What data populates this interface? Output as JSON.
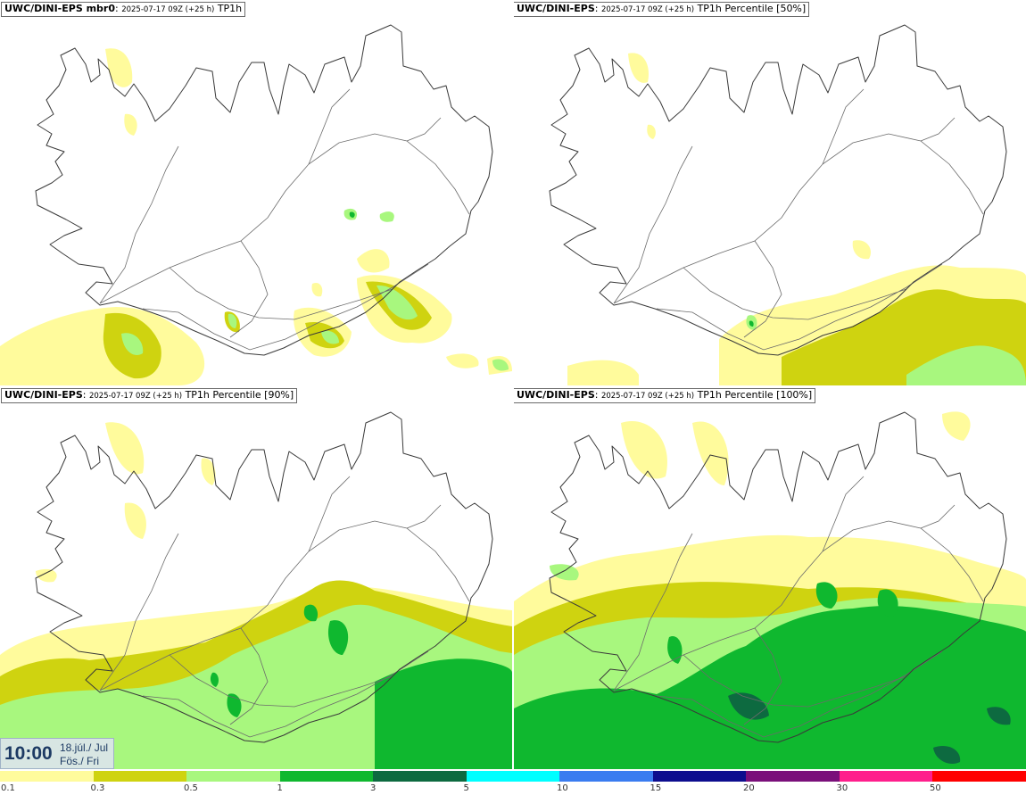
{
  "panels": [
    {
      "source": "UWC/DINI-EPS mbr0",
      "meta": "2025-07-17 09Z (+25 h)",
      "variable": "TP1h"
    },
    {
      "source": "UWC/DINI-EPS",
      "meta": "2025-07-17 09Z (+25 h)",
      "variable": "TP1h Percentile [50%]"
    },
    {
      "source": "UWC/DINI-EPS",
      "meta": "2025-07-17 09Z (+25 h)",
      "variable": "TP1h Percentile [90%]"
    },
    {
      "source": "UWC/DINI-EPS",
      "meta": "2025-07-17 09Z (+25 h)",
      "variable": "TP1h Percentile [100%]"
    }
  ],
  "valid_time": {
    "time": "10:00",
    "date": "18.júl./ Jul",
    "weekday": "Fös./ Fri"
  },
  "legend": {
    "labels": [
      "0.1",
      "0.3",
      "0.5",
      "1",
      "3",
      "5",
      "10",
      "15",
      "20",
      "30",
      "50"
    ],
    "colors": [
      "#fffb9c",
      "#cfd310",
      "#a8f77e",
      "#0fb82f",
      "#0d6a40",
      "#00ffff",
      "#3a7cf0",
      "#0d0d8e",
      "#7a0f7a",
      "#ff1f8c",
      "#ff0000"
    ]
  }
}
